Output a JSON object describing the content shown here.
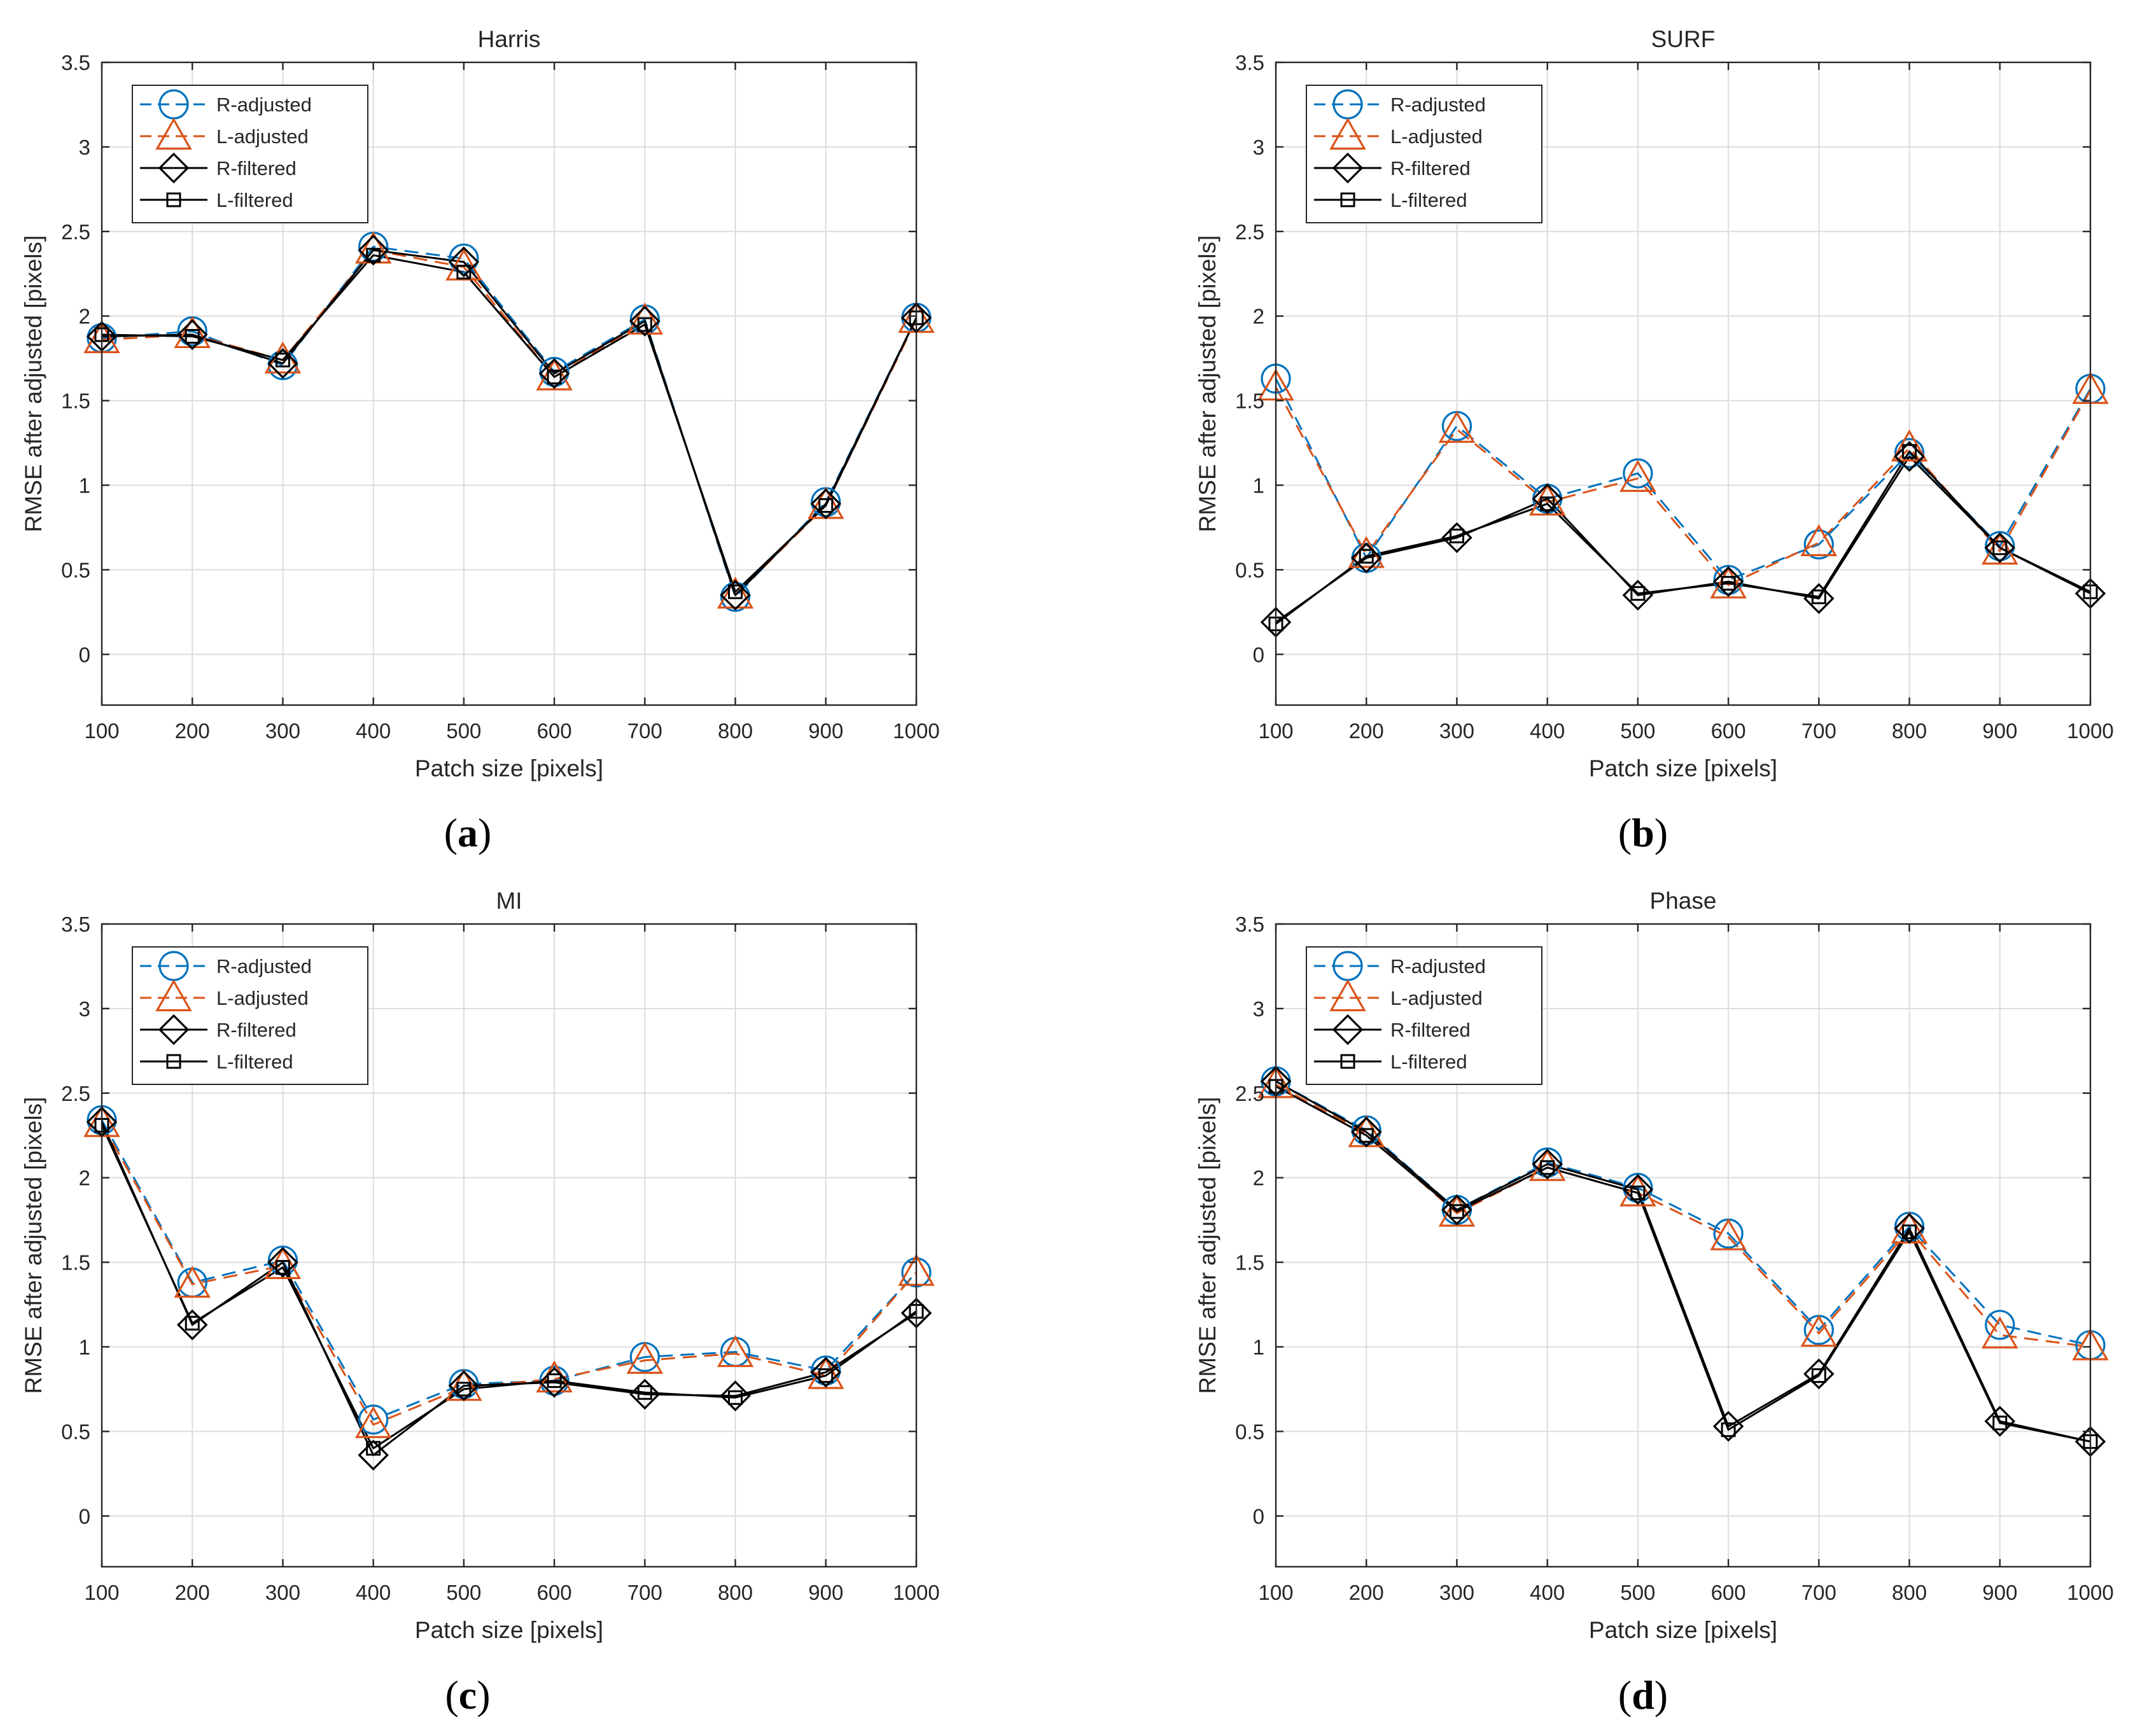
{
  "colors": {
    "r_adjusted": "#0072BD",
    "l_adjusted": "#D95319",
    "filtered": "#000000",
    "grid": "#dcdcdc",
    "axes": "#262626"
  },
  "legend": [
    "R-adjusted",
    "L-adjusted",
    "R-filtered",
    "L-filtered"
  ],
  "chart_data": [
    {
      "type": "line",
      "title": "Harris",
      "caption_letter": "a",
      "xlabel": "Patch size [pixels]",
      "ylabel": "RMSE after adjusted [pixels]",
      "xlim": [
        100,
        1000
      ],
      "ylim": [
        -0.3,
        3.5
      ],
      "xticks": [
        100,
        200,
        300,
        400,
        500,
        600,
        700,
        800,
        900,
        1000
      ],
      "yticks": [
        0,
        0.5,
        1,
        1.5,
        2,
        2.5,
        3,
        3.5
      ],
      "grid": true,
      "legend_position": "top-left",
      "x": [
        100,
        200,
        300,
        400,
        500,
        600,
        700,
        800,
        900,
        1000
      ],
      "series": [
        {
          "name": "R-adjusted",
          "values": [
            1.87,
            1.91,
            1.71,
            2.41,
            2.34,
            1.67,
            1.98,
            0.34,
            0.9,
            1.99
          ]
        },
        {
          "name": "L-adjusted",
          "values": [
            1.86,
            1.89,
            1.74,
            2.39,
            2.29,
            1.64,
            1.97,
            0.35,
            0.88,
            1.98
          ]
        },
        {
          "name": "R-filtered",
          "values": [
            1.88,
            1.89,
            1.72,
            2.39,
            2.32,
            1.66,
            1.97,
            0.35,
            0.89,
            1.99
          ]
        },
        {
          "name": "L-filtered",
          "values": [
            1.89,
            1.88,
            1.74,
            2.36,
            2.26,
            1.64,
            1.95,
            0.37,
            0.88,
            1.99
          ]
        }
      ]
    },
    {
      "type": "line",
      "title": "SURF",
      "caption_letter": "b",
      "xlabel": "Patch size [pixels]",
      "ylabel": "RMSE after adjusted [pixels]",
      "xlim": [
        100,
        1000
      ],
      "ylim": [
        -0.3,
        3.5
      ],
      "xticks": [
        100,
        200,
        300,
        400,
        500,
        600,
        700,
        800,
        900,
        1000
      ],
      "yticks": [
        0,
        0.5,
        1,
        1.5,
        2,
        2.5,
        3,
        3.5
      ],
      "grid": true,
      "legend_position": "top-left",
      "x": [
        100,
        200,
        300,
        400,
        500,
        600,
        700,
        800,
        900,
        1000
      ],
      "series": [
        {
          "name": "R-adjusted",
          "values": [
            1.63,
            0.57,
            1.35,
            0.92,
            1.07,
            0.44,
            0.65,
            1.19,
            0.64,
            1.57
          ]
        },
        {
          "name": "L-adjusted",
          "values": [
            1.58,
            0.59,
            1.33,
            0.9,
            1.04,
            0.41,
            0.66,
            1.22,
            0.61,
            1.56
          ]
        },
        {
          "name": "R-filtered",
          "values": [
            0.19,
            0.57,
            0.69,
            0.92,
            0.35,
            0.43,
            0.33,
            1.17,
            0.63,
            0.36
          ]
        },
        {
          "name": "L-filtered",
          "values": [
            0.18,
            0.58,
            0.7,
            0.89,
            0.36,
            0.42,
            0.34,
            1.2,
            0.63,
            0.37
          ]
        }
      ]
    },
    {
      "type": "line",
      "title": "MI",
      "caption_letter": "c",
      "xlabel": "Patch size [pixels]",
      "ylabel": "RMSE after adjusted [pixels]",
      "xlim": [
        100,
        1000
      ],
      "ylim": [
        -0.3,
        3.5
      ],
      "xticks": [
        100,
        200,
        300,
        400,
        500,
        600,
        700,
        800,
        900,
        1000
      ],
      "yticks": [
        0,
        0.5,
        1,
        1.5,
        2,
        2.5,
        3,
        3.5
      ],
      "grid": true,
      "legend_position": "top-left",
      "x": [
        100,
        200,
        300,
        400,
        500,
        600,
        700,
        800,
        900,
        1000
      ],
      "series": [
        {
          "name": "R-adjusted",
          "values": [
            2.34,
            1.38,
            1.51,
            0.57,
            0.78,
            0.8,
            0.94,
            0.97,
            0.86,
            1.44
          ]
        },
        {
          "name": "L-adjusted",
          "values": [
            2.32,
            1.37,
            1.48,
            0.54,
            0.76,
            0.81,
            0.92,
            0.96,
            0.83,
            1.44
          ]
        },
        {
          "name": "R-filtered",
          "values": [
            2.33,
            1.13,
            1.5,
            0.36,
            0.77,
            0.79,
            0.72,
            0.71,
            0.85,
            1.2
          ]
        },
        {
          "name": "L-filtered",
          "values": [
            2.31,
            1.14,
            1.47,
            0.4,
            0.75,
            0.8,
            0.73,
            0.7,
            0.83,
            1.21
          ]
        }
      ]
    },
    {
      "type": "line",
      "title": "Phase",
      "caption_letter": "d",
      "xlabel": "Patch size [pixels]",
      "ylabel": "RMSE after adjusted [pixels]",
      "xlim": [
        100,
        1000
      ],
      "ylim": [
        -0.3,
        3.5
      ],
      "xticks": [
        100,
        200,
        300,
        400,
        500,
        600,
        700,
        800,
        900,
        1000
      ],
      "yticks": [
        0,
        0.5,
        1,
        1.5,
        2,
        2.5,
        3,
        3.5
      ],
      "grid": true,
      "legend_position": "top-left",
      "x": [
        100,
        200,
        300,
        400,
        500,
        600,
        700,
        800,
        900,
        1000
      ],
      "series": [
        {
          "name": "R-adjusted",
          "values": [
            2.57,
            2.28,
            1.81,
            2.09,
            1.94,
            1.67,
            1.1,
            1.71,
            1.13,
            1.01
          ]
        },
        {
          "name": "L-adjusted",
          "values": [
            2.55,
            2.26,
            1.79,
            2.06,
            1.91,
            1.65,
            1.08,
            1.69,
            1.07,
            1.0
          ]
        },
        {
          "name": "R-filtered",
          "values": [
            2.57,
            2.27,
            1.81,
            2.08,
            1.93,
            0.53,
            0.84,
            1.7,
            0.56,
            0.44
          ]
        },
        {
          "name": "L-filtered",
          "values": [
            2.54,
            2.25,
            1.8,
            2.06,
            1.91,
            0.51,
            0.83,
            1.68,
            0.55,
            0.44
          ]
        }
      ]
    }
  ]
}
